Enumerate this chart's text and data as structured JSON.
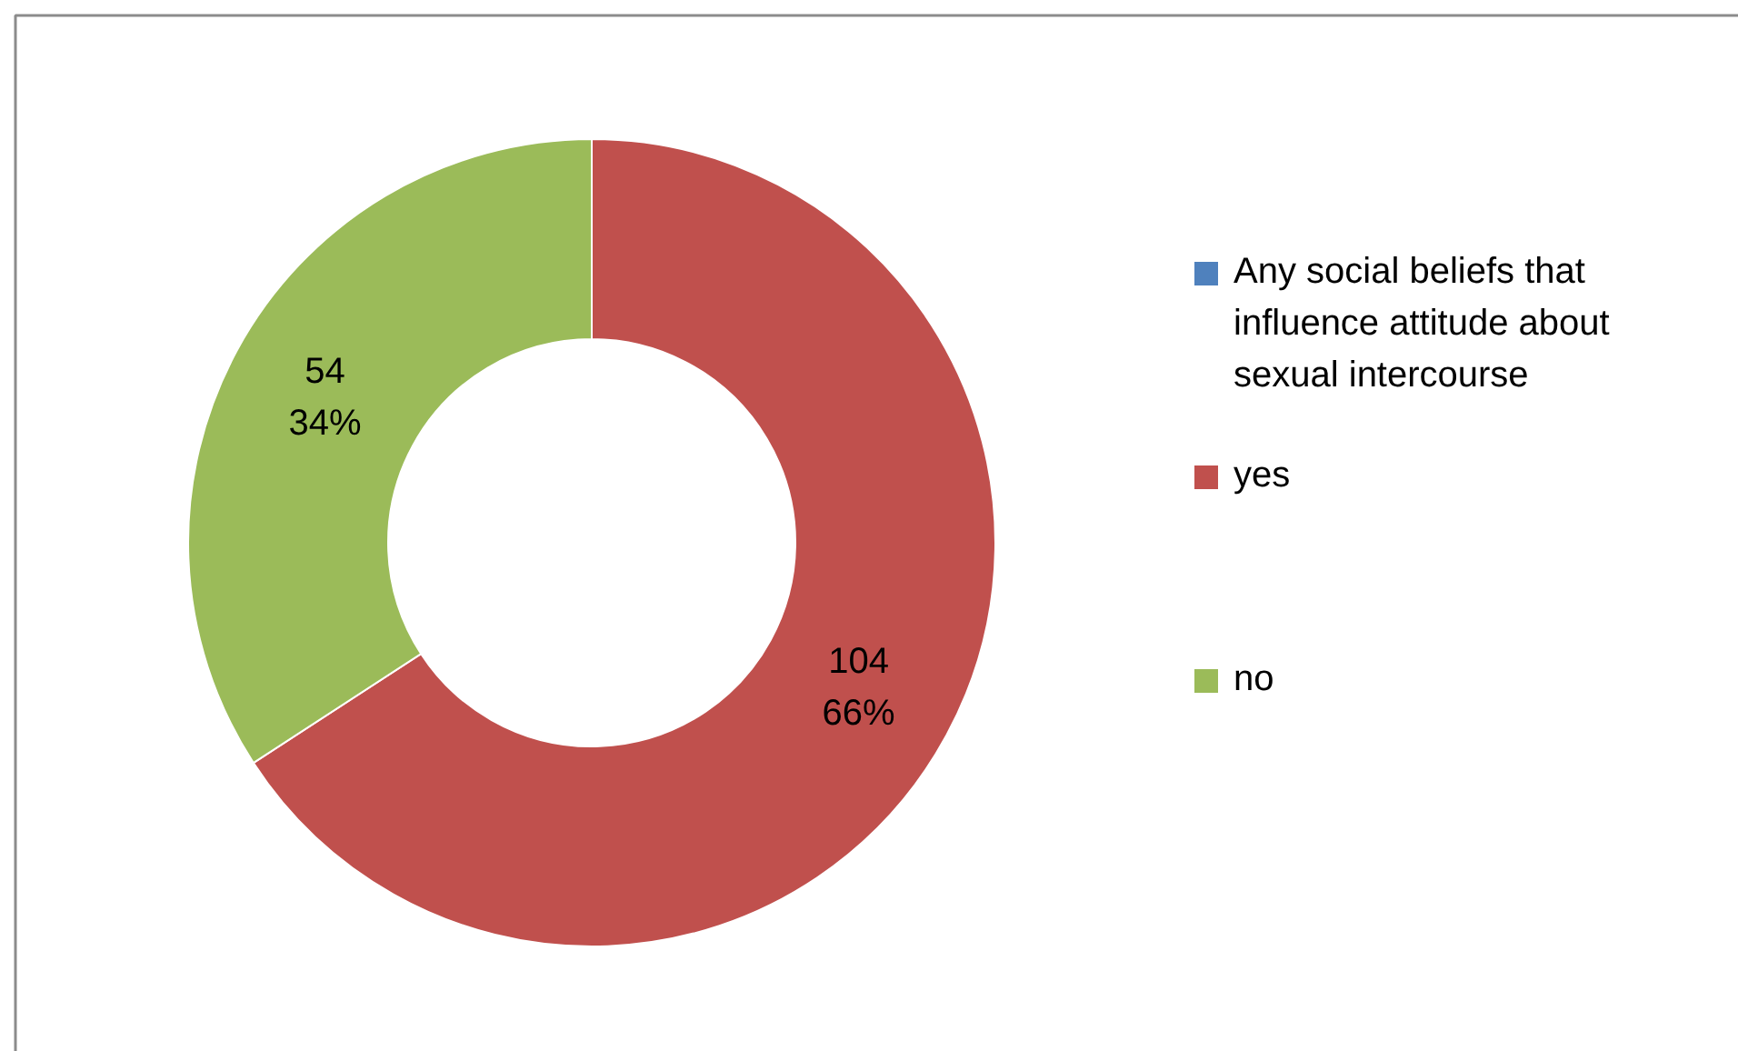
{
  "chart_data": {
    "type": "donut",
    "categories": [
      "Any social beliefs that influence attitude about sexual intercourse",
      "yes",
      "no"
    ],
    "values": [
      0,
      104,
      54
    ],
    "colors": [
      "#4f81bd",
      "#c0504d",
      "#9bbb59"
    ],
    "value_labels": [
      null,
      "104\n66%",
      "54\n34%"
    ],
    "legend": "right"
  }
}
